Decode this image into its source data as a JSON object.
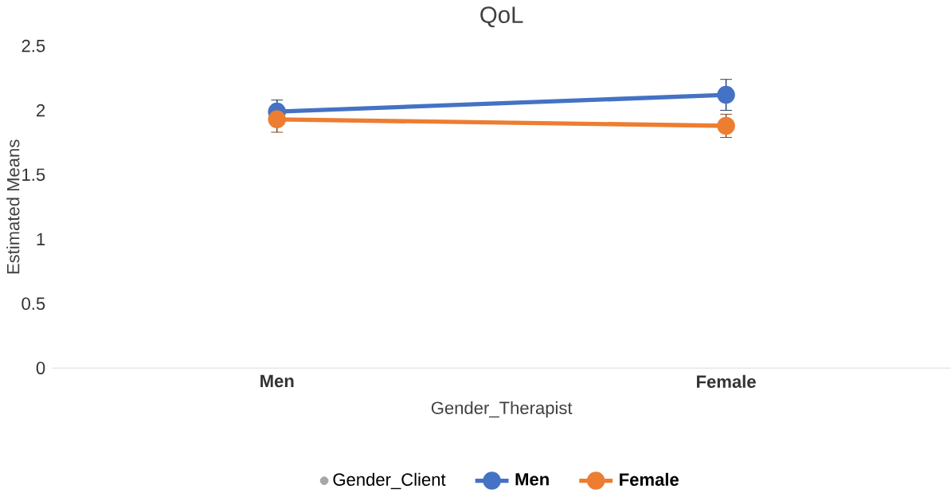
{
  "chart_data": {
    "type": "line",
    "title": "QoL",
    "xlabel": "Gender_Therapist",
    "ylabel": "Estimated Means",
    "legend_title": "Gender_Client",
    "categories": [
      "Men",
      "Female"
    ],
    "series": [
      {
        "name": "Men",
        "color": "#4472c4",
        "values": [
          1.99,
          2.12
        ],
        "errors": [
          0.09,
          0.12
        ]
      },
      {
        "name": "Female",
        "color": "#ed7d31",
        "values": [
          1.93,
          1.88
        ],
        "errors": [
          0.1,
          0.09
        ]
      }
    ],
    "ylim": [
      0,
      2.5
    ],
    "yticks": [
      0,
      0.5,
      1,
      1.5,
      2,
      2.5
    ],
    "grid": false,
    "legend": "bottom",
    "marker": "circle",
    "line_style": "solid"
  }
}
